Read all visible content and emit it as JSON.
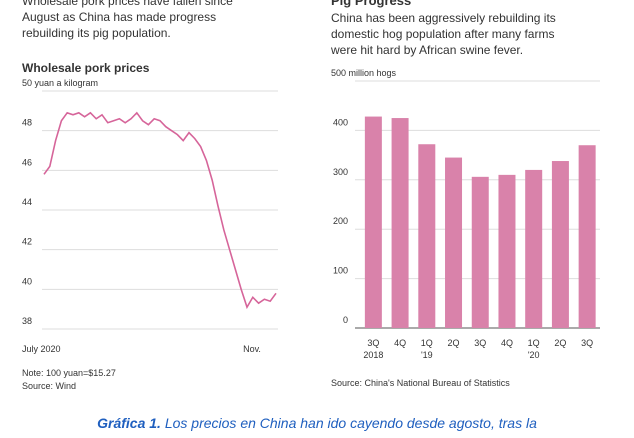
{
  "chart_data": [
    {
      "type": "line",
      "intro": [
        "Wholesale pork prices have fallen since",
        "August as China has made progress",
        "rebuilding its pig population."
      ],
      "title": "Wholesale pork prices",
      "values": [
        45.8,
        46.2,
        47.5,
        48.5,
        48.9,
        48.8,
        48.9,
        48.7,
        48.9,
        48.6,
        48.8,
        48.4,
        48.5,
        48.6,
        48.4,
        48.6,
        48.9,
        48.5,
        48.3,
        48.6,
        48.5,
        48.2,
        48.0,
        47.8,
        47.5,
        47.9,
        47.6,
        47.2,
        46.5,
        45.5,
        44.2,
        43.0,
        42.0,
        41.0,
        40.0,
        39.1,
        39.6,
        39.3,
        39.5,
        39.4,
        39.8
      ],
      "color": "#d6659a",
      "ylim": [
        38,
        50
      ],
      "yticks": [
        38,
        40,
        42,
        44,
        46,
        48,
        {
          "value": 50,
          "label": "50 yuan a kilogram"
        }
      ],
      "xtick_labels": [
        "July 2020",
        "Nov."
      ],
      "grid": true,
      "note": "Note: 100 yuan=$15.27",
      "source": "Source: Wind"
    },
    {
      "type": "bar",
      "title": "Pig Progress",
      "subtitle": [
        "China has been aggressively rebuilding its",
        "domestic hog population after many farms",
        "were hit hard by African swine fever."
      ],
      "categories": [
        "3Q",
        "4Q",
        "1Q",
        "2Q",
        "3Q",
        "4Q",
        "1Q",
        "2Q",
        "3Q"
      ],
      "category_sublabels": [
        "2018",
        null,
        "'19",
        null,
        null,
        null,
        "'20",
        null,
        null
      ],
      "values": [
        428,
        425,
        372,
        345,
        306,
        310,
        320,
        338,
        370
      ],
      "color": "#d982aa",
      "ylim": [
        0,
        500
      ],
      "yticks": [
        0,
        100,
        200,
        300,
        400,
        {
          "value": 500,
          "label": "500 million hogs"
        }
      ],
      "grid": true,
      "source": "Source: China's National Bureau of Statistics"
    }
  ],
  "caption": {
    "label": "Gráfica 1.",
    "text": " Los precios en China han ido cayendo desde agosto, tras la"
  }
}
